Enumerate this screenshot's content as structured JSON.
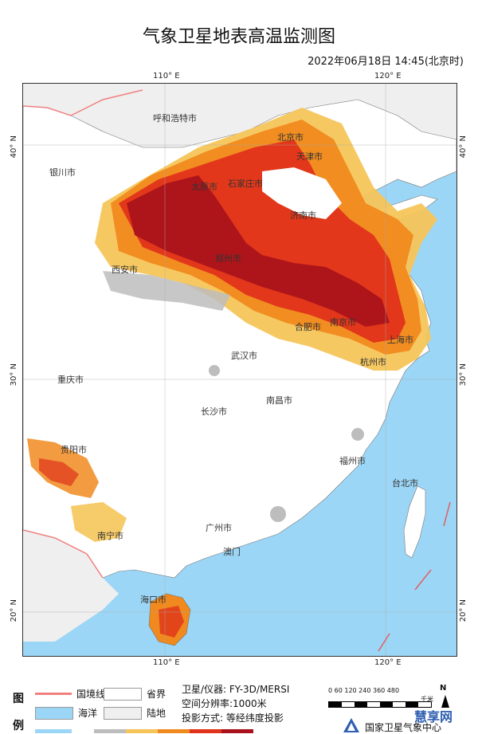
{
  "header": {
    "title": "气象卫星地表高温监测图",
    "datetime": "2022年06月18日 14:45(北京时)"
  },
  "graticule": {
    "lon_110": "110° E",
    "lon_120": "120° E",
    "lat_40": "40° N",
    "lat_30": "30° N",
    "lat_20": "20° N"
  },
  "cities": {
    "huhehaote": "呼和浩特市",
    "beijing": "北京市",
    "tianjin": "天津市",
    "yinchuan": "银川市",
    "taiyuan": "太原市",
    "shijiazhuang": "石家庄市",
    "jinan": "济南市",
    "xian": "西安市",
    "zhengzhou": "郑州市",
    "hefei": "合肥市",
    "nanjing": "南京市",
    "shanghai": "上海市",
    "wuhan": "武汉市",
    "hangzhou": "杭州市",
    "chongqing": "重庆市",
    "nanchang": "南昌市",
    "changsha": "长沙市",
    "guiyang": "贵阳市",
    "fuzhou": "福州市",
    "taibei": "台北市",
    "nanning": "南宁市",
    "guangzhou": "广州市",
    "aomen": "澳门",
    "haikou": "海口市"
  },
  "legend": {
    "head_1": "图",
    "head_2": "例",
    "border": "国境线",
    "ocean": "海洋",
    "province": "省界",
    "land": "陆地",
    "satellite": "卫星/仪器: FY-3D/MERSI",
    "resolution": "空间分辨率:1000米",
    "projection": "投影方式: 等经纬度投影",
    "scale_ticks": "0  60 120    240    360    480",
    "scale_unit": "千米",
    "north": "N",
    "organization": "国家卫星气象中心",
    "watermark": "慧享网"
  },
  "colors": {
    "ocean": "#9cd6f6",
    "land": "#ffffff",
    "neighbor_land": "#efefef",
    "border_line": "#f08080",
    "heat_low": "#f5c55a",
    "heat_mid": "#f08a1e",
    "heat_high": "#e0331a",
    "heat_max": "#a8121c",
    "cloud": "#bdbdbd"
  }
}
